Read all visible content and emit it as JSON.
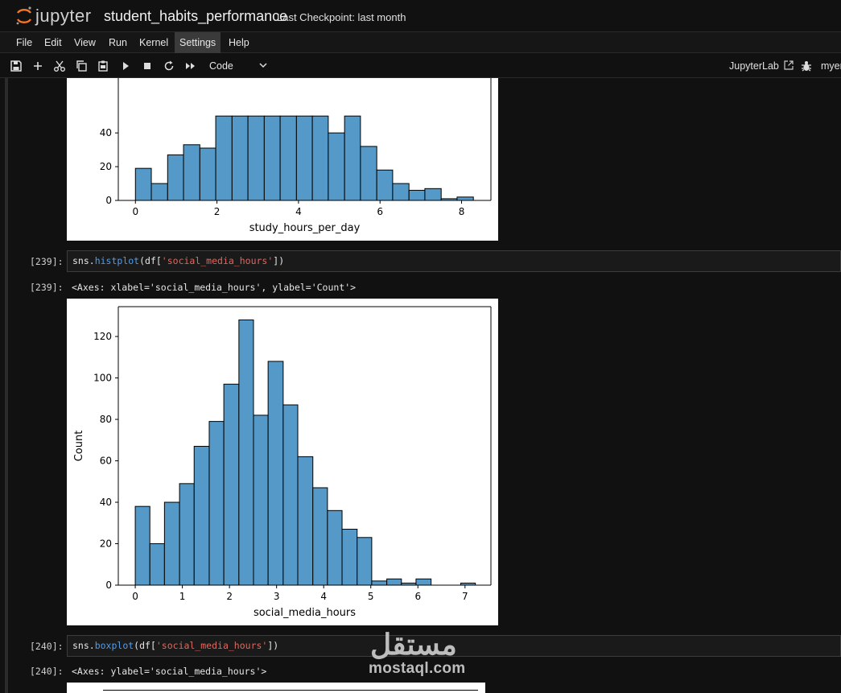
{
  "header": {
    "logo_text": "jupyter",
    "notebook_title": "student_habits_performance",
    "checkpoint": "Last Checkpoint: last month"
  },
  "menu": [
    "File",
    "Edit",
    "View",
    "Run",
    "Kernel",
    "Settings",
    "Help"
  ],
  "toolbar": {
    "icons": [
      "save-icon",
      "add-icon",
      "cut-icon",
      "copy-icon",
      "paste-icon",
      "run-icon",
      "stop-icon",
      "restart-icon",
      "fast-forward-icon"
    ],
    "cell_type": "Code",
    "jupyterlab_label": "JupyterLab",
    "kernel_label": "myen"
  },
  "cells": [
    {
      "prompt_in": "[239]:",
      "code": {
        "prefix": "sns.",
        "fn": "histplot",
        "mid": "(df[",
        "str": "'social_media_hours'",
        "suffix": "])"
      },
      "prompt_out": "[239]:",
      "output": "<Axes: xlabel='social_media_hours', ylabel='Count'>"
    },
    {
      "prompt_in": "[240]:",
      "code": {
        "prefix": "sns.",
        "fn": "boxplot",
        "mid": "(df[",
        "str": "'social_media_hours'",
        "suffix": "])"
      },
      "prompt_out": "[240]:",
      "output": "<Axes: ylabel='social_media_hours'>"
    }
  ],
  "watermark": {
    "arabic": "مستقل",
    "latin": "mostaql.com"
  },
  "chart_data": [
    {
      "type": "bar",
      "xlabel": "study_hours_per_day",
      "ylabel": "",
      "bar_color": "#5499c7",
      "xlim": [
        -0.42,
        8.72
      ],
      "ylim_visible": [
        0,
        50
      ],
      "xticks": [
        0,
        2,
        4,
        6,
        8
      ],
      "yticks": [
        0,
        20,
        40
      ],
      "bin_edges": [
        0,
        0.39,
        0.79,
        1.18,
        1.58,
        1.97,
        2.37,
        2.76,
        3.16,
        3.55,
        3.95,
        4.34,
        4.73,
        5.13,
        5.52,
        5.92,
        6.31,
        6.71,
        7.1,
        7.5,
        7.89,
        8.29
      ],
      "values": [
        19,
        10,
        27,
        33,
        31,
        50,
        50,
        50,
        50,
        50,
        50,
        50,
        40,
        50,
        32,
        18,
        10,
        6,
        7,
        1,
        2
      ]
    },
    {
      "type": "bar",
      "xlabel": "social_media_hours",
      "ylabel": "Count",
      "bar_color": "#5499c7",
      "xlim": [
        -0.36,
        7.55
      ],
      "ylim": [
        0,
        134.4
      ],
      "xticks": [
        0,
        1,
        2,
        3,
        4,
        5,
        6,
        7
      ],
      "yticks": [
        0,
        20,
        40,
        60,
        80,
        100,
        120
      ],
      "bin_edges": [
        0,
        0.31,
        0.62,
        0.94,
        1.25,
        1.57,
        1.88,
        2.2,
        2.51,
        2.82,
        3.14,
        3.45,
        3.77,
        4.08,
        4.39,
        4.71,
        5.02,
        5.34,
        5.65,
        5.96,
        6.28,
        6.59,
        6.91,
        7.22
      ],
      "values": [
        38,
        20,
        40,
        49,
        67,
        79,
        97,
        128,
        82,
        108,
        87,
        62,
        47,
        36,
        27,
        23,
        2,
        3,
        1,
        3,
        0,
        0,
        1
      ]
    }
  ]
}
